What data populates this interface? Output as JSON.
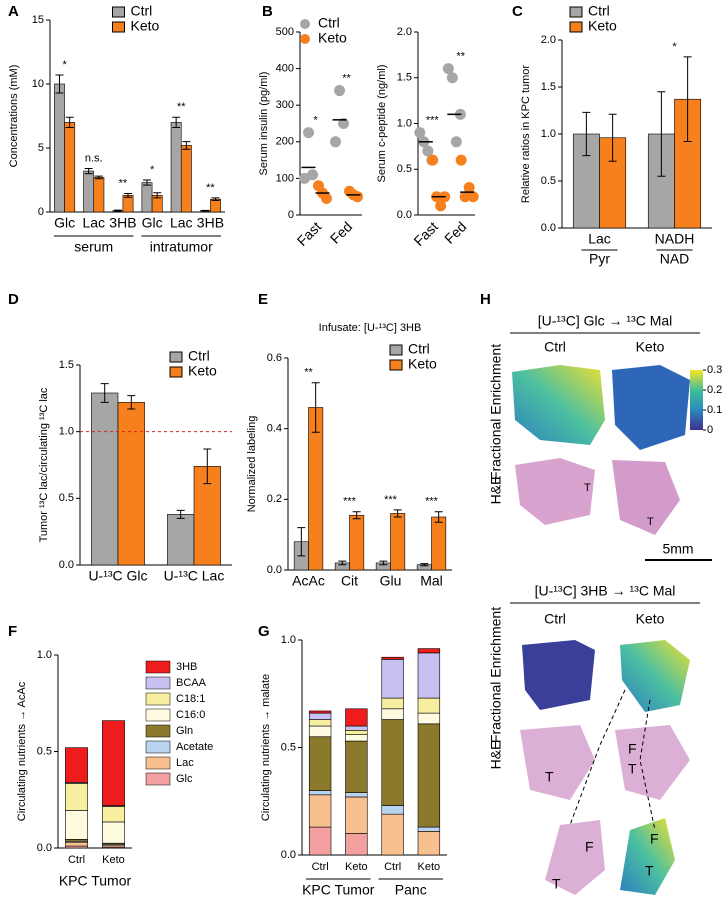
{
  "chart_data": [
    {
      "type": "bar",
      "panel": "A",
      "ylabel": "Concentrations (mM)",
      "categories": [
        "Glc",
        "Lac",
        "3HB",
        "Glc",
        "Lac",
        "3HB"
      ],
      "groups": [
        "serum",
        "intratumor"
      ],
      "series": [
        {
          "name": "Ctrl",
          "color": "#a6a6a6",
          "values": [
            10,
            3.2,
            0.1,
            2.3,
            7,
            0.1
          ],
          "errors": [
            0.7,
            0.2,
            0.05,
            0.2,
            0.4,
            0.03
          ]
        },
        {
          "name": "Keto",
          "color": "#f7801e",
          "values": [
            7,
            2.7,
            1.3,
            1.3,
            5.2,
            1.0
          ],
          "errors": [
            0.4,
            0.1,
            0.15,
            0.2,
            0.3,
            0.1
          ]
        }
      ],
      "significance": [
        "*",
        "n.s.",
        "**",
        "*",
        "**",
        "**"
      ],
      "ylim": [
        0,
        15
      ],
      "yticks": [
        0,
        5,
        10,
        15
      ],
      "legend": "upper center"
    },
    {
      "type": "dot",
      "panel": "B",
      "ylabel": "Serum insulin (pg/ml)",
      "categories": [
        "Fast",
        "Fed"
      ],
      "series": [
        {
          "name": "Ctrl",
          "color": "#a6a6a6",
          "values": [
            130,
            260
          ],
          "points": [
            [
              100,
              225,
              110
            ],
            [
              200,
              340,
              250
            ]
          ]
        },
        {
          "name": "Keto",
          "color": "#f7801e",
          "values": [
            60,
            55
          ],
          "points": [
            [
              80,
              60,
              45
            ],
            [
              65,
              55,
              50
            ]
          ]
        }
      ],
      "significance": [
        "*",
        "**"
      ],
      "ylim": [
        0,
        500
      ],
      "yticks": [
        0,
        100,
        200,
        300,
        400,
        500
      ],
      "legend": "upper right"
    },
    {
      "type": "dot",
      "ylabel": "Serum c-peptide (ng/ml)",
      "categories": [
        "Fast",
        "Fed"
      ],
      "series": [
        {
          "name": "Ctrl",
          "color": "#a6a6a6",
          "values": [
            0.8,
            1.1
          ],
          "points": [
            [
              0.9,
              0.8,
              0.7,
              0.6
            ],
            [
              1.6,
              1.5,
              0.8,
              1.1
            ]
          ]
        },
        {
          "name": "Keto",
          "color": "#f7801e",
          "values": [
            0.2,
            0.25
          ],
          "points": [
            [
              0.6,
              0.2,
              0.1,
              0.2
            ],
            [
              0.6,
              0.2,
              0.3,
              0.2
            ]
          ]
        }
      ],
      "significance": [
        "***",
        "**"
      ],
      "ylim": [
        0,
        2
      ],
      "yticks": [
        {
          "value": 0,
          "label": "0.0"
        },
        {
          "value": 0.5,
          "label": "0.5"
        },
        {
          "value": 1,
          "label": "1.0"
        },
        {
          "value": 1.5,
          "label": "1.5"
        },
        {
          "value": 2,
          "label": "2.0"
        }
      ]
    },
    {
      "type": "bar",
      "panel": "C",
      "ylabel": "Relative ratios in KPC tumor",
      "categories": [
        "Lac",
        "NADH"
      ],
      "category_denominators": [
        "Pyr",
        "NAD"
      ],
      "series": [
        {
          "name": "Ctrl",
          "color": "#a6a6a6",
          "values": [
            1.0,
            1.0
          ],
          "errors": [
            0.23,
            0.45
          ]
        },
        {
          "name": "Keto",
          "color": "#f7801e",
          "values": [
            0.96,
            1.37
          ],
          "errors": [
            0.25,
            0.45
          ]
        }
      ],
      "significance": [
        null,
        "*"
      ],
      "ylim": [
        0,
        2
      ],
      "yticks": [
        {
          "value": 0,
          "label": "0.0"
        },
        {
          "value": 0.5,
          "label": "0.5"
        },
        {
          "value": 1,
          "label": "1.0"
        },
        {
          "value": 1.5,
          "label": "1.5"
        },
        {
          "value": 2,
          "label": "2.0"
        }
      ],
      "legend": "upper left"
    },
    {
      "type": "bar",
      "panel": "D",
      "ylabel": "Tumor ¹³C lac/circulating ¹³C lac",
      "categories": [
        "U-¹³C Glc",
        "U-¹³C Lac"
      ],
      "series": [
        {
          "name": "Ctrl",
          "color": "#a6a6a6",
          "values": [
            1.29,
            0.38
          ],
          "errors": [
            0.07,
            0.03
          ]
        },
        {
          "name": "Keto",
          "color": "#f7801e",
          "values": [
            1.22,
            0.74
          ],
          "errors": [
            0.05,
            0.13
          ]
        }
      ],
      "hline": 1.0,
      "ylim": [
        0,
        1.5
      ],
      "yticks": [
        {
          "value": 0,
          "label": "0.0"
        },
        {
          "value": 0.5,
          "label": "0.5"
        },
        {
          "value": 1,
          "label": "1.0"
        },
        {
          "value": 1.5,
          "label": "1.5"
        }
      ],
      "legend": "upper right"
    },
    {
      "type": "bar",
      "panel": "E",
      "title": "Infusate: [U-¹³C] 3HB",
      "ylabel": "Normalized labeling",
      "categories": [
        "AcAc",
        "Cit",
        "Glu",
        "Mal"
      ],
      "series": [
        {
          "name": "Ctrl",
          "color": "#a6a6a6",
          "values": [
            0.08,
            0.02,
            0.02,
            0.015
          ],
          "errors": [
            0.04,
            0.005,
            0.005,
            0.003
          ]
        },
        {
          "name": "Keto",
          "color": "#f7801e",
          "values": [
            0.46,
            0.155,
            0.16,
            0.15
          ],
          "errors": [
            0.07,
            0.01,
            0.01,
            0.015
          ]
        }
      ],
      "significance": [
        "**",
        "***",
        "***",
        "***"
      ],
      "ylim": [
        0,
        0.6
      ],
      "yticks": [
        {
          "value": 0,
          "label": "0.0"
        },
        {
          "value": 0.2,
          "label": "0.2"
        },
        {
          "value": 0.4,
          "label": "0.4"
        },
        {
          "value": 0.6,
          "label": "0.6"
        }
      ],
      "legend": "upper right"
    },
    {
      "type": "stacked",
      "panel": "F",
      "ylabel": "Circulating nutrients → AcAc",
      "xlabel": "KPC Tumor",
      "categories": [
        "Ctrl",
        "Keto"
      ],
      "series": [
        {
          "name": "Glc",
          "color": "#f4a0a0",
          "values": [
            0.01,
            0.005
          ]
        },
        {
          "name": "Lac",
          "color": "#f9c08f",
          "values": [
            0.02,
            0.01
          ]
        },
        {
          "name": "Acetate",
          "color": "#b8d4f0",
          "values": [
            0.005,
            0.005
          ]
        },
        {
          "name": "Gln",
          "color": "#8b7a2c",
          "values": [
            0.01,
            0.005
          ]
        },
        {
          "name": "C16:0",
          "color": "#fffbe0",
          "values": [
            0.15,
            0.11
          ]
        },
        {
          "name": "C18:1",
          "color": "#f7eea0",
          "values": [
            0.14,
            0.08
          ]
        },
        {
          "name": "BCAA",
          "color": "#c8c0f0",
          "values": [
            0.005,
            0.005
          ]
        },
        {
          "name": "3HB",
          "color": "#ee1c1c",
          "values": [
            0.18,
            0.44
          ]
        }
      ],
      "ylim": [
        0,
        1
      ],
      "yticks": [
        {
          "value": 0,
          "label": "0.0"
        },
        {
          "value": 0.5,
          "label": "0.5"
        },
        {
          "value": 1,
          "label": "1.0"
        }
      ],
      "legend": "right"
    },
    {
      "type": "stacked",
      "panel": "G",
      "ylabel": "Circulating nutrients → malate",
      "categories": [
        "Ctrl",
        "Keto",
        "Ctrl",
        "Keto"
      ],
      "groups": [
        "KPC Tumor",
        "Panc"
      ],
      "series": [
        {
          "name": "Glc",
          "color": "#f4a0a0",
          "values": [
            0.13,
            0.1,
            0,
            0
          ]
        },
        {
          "name": "Lac",
          "color": "#f9c08f",
          "values": [
            0.15,
            0.17,
            0.19,
            0.11
          ]
        },
        {
          "name": "Acetate",
          "color": "#b8d4f0",
          "values": [
            0.02,
            0.02,
            0.04,
            0.02
          ]
        },
        {
          "name": "Gln",
          "color": "#8b7a2c",
          "values": [
            0.25,
            0.24,
            0.4,
            0.48
          ]
        },
        {
          "name": "C16:0",
          "color": "#fffbe0",
          "values": [
            0.05,
            0.03,
            0.05,
            0.05
          ]
        },
        {
          "name": "C18:1",
          "color": "#f7eea0",
          "values": [
            0.03,
            0.02,
            0.05,
            0.07
          ]
        },
        {
          "name": "BCAA",
          "color": "#c8c0f0",
          "values": [
            0.03,
            0.02,
            0.18,
            0.21
          ]
        },
        {
          "name": "3HB",
          "color": "#ee1c1c",
          "values": [
            0.01,
            0.08,
            0.01,
            0.02
          ]
        }
      ],
      "ylim": [
        0,
        1
      ],
      "yticks": [
        {
          "value": 0,
          "label": "0.0"
        },
        {
          "value": 0.5,
          "label": "0.5"
        },
        {
          "value": 1,
          "label": "1.0"
        }
      ]
    }
  ],
  "image_panel": {
    "panel": "H",
    "top": {
      "title": "[U-¹³C] Glc → ¹³C Mal",
      "columns": [
        "Ctrl",
        "Keto"
      ],
      "rows": [
        "Fractional Enrichment",
        "H&E"
      ],
      "labels": [
        "T",
        "T"
      ]
    },
    "scale_bar": "5mm",
    "bottom": {
      "title": "[U-¹³C]  3HB → ¹³C Mal",
      "columns": [
        "Ctrl",
        "Keto"
      ],
      "rows": [
        "Fractional Enrichment",
        "H&E"
      ],
      "labels": [
        "T",
        "F",
        "T",
        "F",
        "T",
        "F",
        "T"
      ]
    },
    "colorbar": {
      "ticks": [
        0,
        0.1,
        0.2,
        0.3
      ]
    }
  }
}
